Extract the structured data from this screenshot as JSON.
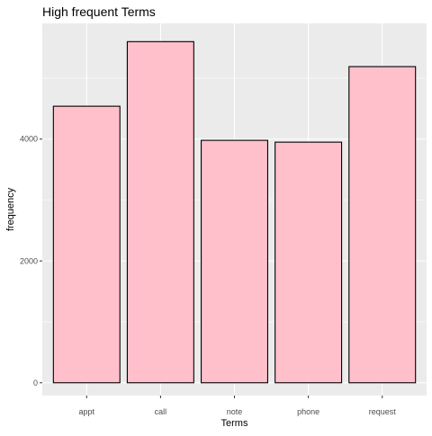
{
  "chart_data": {
    "type": "bar",
    "title": "High frequent Terms",
    "xlabel": "Terms",
    "ylabel": "frequency",
    "categories": [
      "appt",
      "call",
      "note",
      "phone",
      "request"
    ],
    "values": [
      4540,
      5600,
      3980,
      3950,
      5190
    ],
    "ylim": [
      -210,
      5900
    ],
    "yticks": [
      0,
      2000,
      4000
    ],
    "y_minor_ticks": [
      1000,
      3000,
      5000
    ],
    "grid": true,
    "legend": "none",
    "colors": {
      "bar_fill": "#ffc0cb",
      "bar_stroke": "#000000",
      "panel_bg": "#ebebeb",
      "grid": "#ffffff",
      "tick_text": "#4d4d4d",
      "tick_mark": "#333333"
    }
  }
}
